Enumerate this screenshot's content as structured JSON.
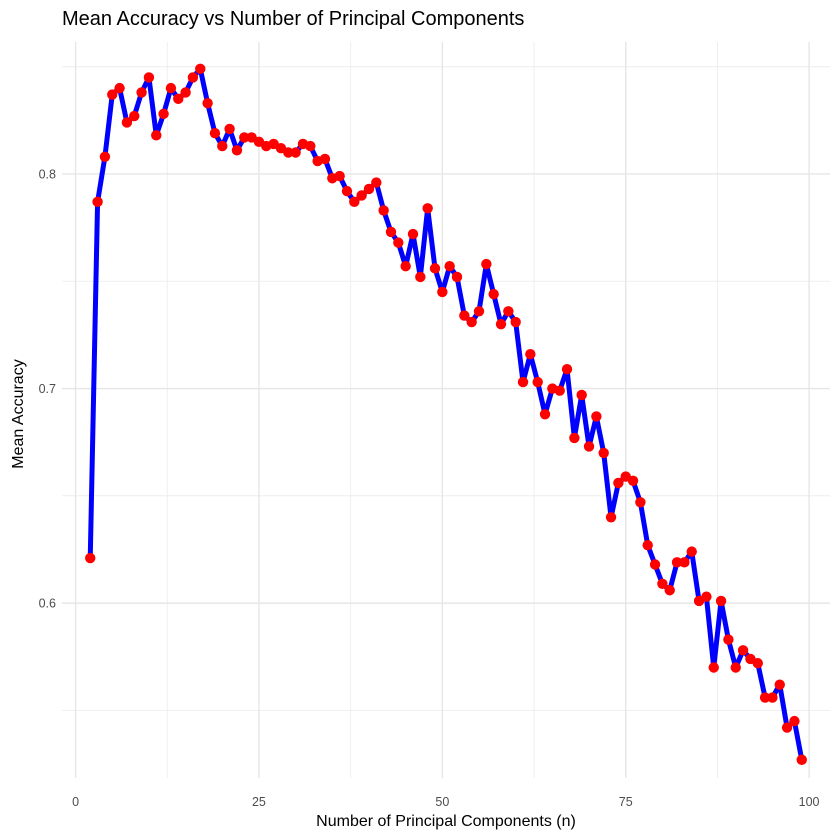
{
  "chart_data": {
    "type": "line",
    "title": "Mean Accuracy vs Number of Principal Components",
    "xlabel": "Number of Principal Components (n)",
    "ylabel": "Mean Accuracy",
    "xlim": [
      -1.85,
      102.85
    ],
    "ylim": [
      0.5185,
      0.8615
    ],
    "xticks": [
      0,
      25,
      50,
      75,
      100
    ],
    "yticks": [
      0.6,
      0.7,
      0.8
    ],
    "xtick_labels": [
      "0",
      "25",
      "50",
      "75",
      "100"
    ],
    "ytick_labels": [
      "0.6",
      "0.7",
      "0.8"
    ],
    "grid": true,
    "line_color": "#0000ff",
    "point_color": "#ff0000",
    "x": [
      2,
      3,
      4,
      5,
      6,
      7,
      8,
      9,
      10,
      11,
      12,
      13,
      14,
      15,
      16,
      17,
      18,
      19,
      20,
      21,
      22,
      23,
      24,
      25,
      26,
      27,
      28,
      29,
      30,
      31,
      32,
      33,
      34,
      35,
      36,
      37,
      38,
      39,
      40,
      41,
      42,
      43,
      44,
      45,
      46,
      47,
      48,
      49,
      50,
      51,
      52,
      53,
      54,
      55,
      56,
      57,
      58,
      59,
      60,
      61,
      62,
      63,
      64,
      65,
      66,
      67,
      68,
      69,
      70,
      71,
      72,
      73,
      74,
      75,
      76,
      77,
      78,
      79,
      80,
      81,
      82,
      83,
      84,
      85,
      86,
      87,
      88,
      89,
      90,
      91,
      92,
      93,
      94,
      95,
      96,
      97,
      98,
      99
    ],
    "values": [
      0.621,
      0.787,
      0.808,
      0.837,
      0.84,
      0.824,
      0.827,
      0.838,
      0.845,
      0.818,
      0.828,
      0.84,
      0.835,
      0.838,
      0.845,
      0.849,
      0.833,
      0.819,
      0.813,
      0.821,
      0.811,
      0.817,
      0.817,
      0.815,
      0.813,
      0.814,
      0.812,
      0.81,
      0.81,
      0.814,
      0.813,
      0.806,
      0.807,
      0.798,
      0.799,
      0.792,
      0.787,
      0.79,
      0.793,
      0.796,
      0.783,
      0.773,
      0.768,
      0.757,
      0.772,
      0.752,
      0.784,
      0.756,
      0.745,
      0.757,
      0.752,
      0.734,
      0.731,
      0.736,
      0.758,
      0.744,
      0.73,
      0.736,
      0.731,
      0.703,
      0.716,
      0.703,
      0.688,
      0.7,
      0.699,
      0.709,
      0.677,
      0.697,
      0.673,
      0.687,
      0.67,
      0.64,
      0.656,
      0.659,
      0.657,
      0.647,
      0.627,
      0.618,
      0.609,
      0.606,
      0.619,
      0.619,
      0.624,
      0.601,
      0.603,
      0.57,
      0.601,
      0.583,
      0.57,
      0.578,
      0.574,
      0.572,
      0.556,
      0.556,
      0.562,
      0.542,
      0.545,
      0.527
    ]
  }
}
